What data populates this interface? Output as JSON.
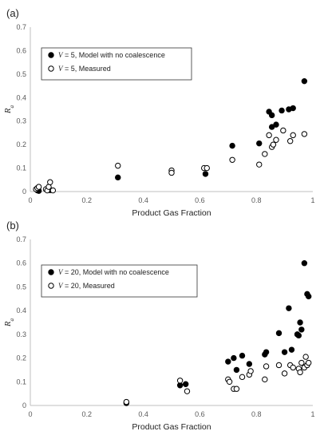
{
  "chart_data": [
    {
      "type": "scatter",
      "panel_label": "(a)",
      "xlabel": "Product Gas Fraction",
      "ylabel": "R",
      "ylabel_sub": "a",
      "xlim": [
        0,
        1
      ],
      "ylim": [
        0,
        0.7
      ],
      "xticks": [
        "0",
        "0.2",
        "0.4",
        "0.6",
        "0.8",
        "1"
      ],
      "yticks": [
        "0",
        "0.1",
        "0.2",
        "0.3",
        "0.4",
        "0.5",
        "0.6",
        "0.7"
      ],
      "legend_position": "top-left",
      "legend": [
        {
          "var": "V",
          "text": " = 5, Model with no coalescence"
        },
        {
          "var": "V",
          "text": " = 5, Measured"
        }
      ],
      "series": [
        {
          "filled": true,
          "points": [
            [
              0.025,
              0.005
            ],
            [
              0.03,
              0.003
            ],
            [
              0.06,
              0.008
            ],
            [
              0.065,
              0.012
            ],
            [
              0.07,
              0.006
            ],
            [
              0.31,
              0.06
            ],
            [
              0.62,
              0.075
            ],
            [
              0.715,
              0.195
            ],
            [
              0.81,
              0.205
            ],
            [
              0.845,
              0.34
            ],
            [
              0.855,
              0.325
            ],
            [
              0.855,
              0.275
            ],
            [
              0.87,
              0.285
            ],
            [
              0.89,
              0.345
            ],
            [
              0.915,
              0.35
            ],
            [
              0.93,
              0.355
            ],
            [
              0.97,
              0.47
            ]
          ]
        },
        {
          "filled": false,
          "points": [
            [
              0.02,
              0.01
            ],
            [
              0.025,
              0.015
            ],
            [
              0.03,
              0.02
            ],
            [
              0.055,
              0.01
            ],
            [
              0.06,
              0.005
            ],
            [
              0.065,
              0.02
            ],
            [
              0.07,
              0.04
            ],
            [
              0.08,
              0.005
            ],
            [
              0.31,
              0.11
            ],
            [
              0.5,
              0.09
            ],
            [
              0.5,
              0.08
            ],
            [
              0.615,
              0.1
            ],
            [
              0.625,
              0.1
            ],
            [
              0.715,
              0.135
            ],
            [
              0.81,
              0.115
            ],
            [
              0.83,
              0.16
            ],
            [
              0.845,
              0.24
            ],
            [
              0.855,
              0.19
            ],
            [
              0.86,
              0.2
            ],
            [
              0.87,
              0.22
            ],
            [
              0.895,
              0.26
            ],
            [
              0.92,
              0.215
            ],
            [
              0.93,
              0.24
            ],
            [
              0.97,
              0.245
            ]
          ]
        }
      ]
    },
    {
      "type": "scatter",
      "panel_label": "(b)",
      "xlabel": "Product Gas Fraction",
      "ylabel": "R",
      "ylabel_sub": "a",
      "xlim": [
        0,
        1
      ],
      "ylim": [
        0,
        0.7
      ],
      "xticks": [
        "0",
        "0.2",
        "0.4",
        "0.6",
        "0.8",
        "1"
      ],
      "yticks": [
        "0",
        "0.1",
        "0.2",
        "0.3",
        "0.4",
        "0.5",
        "0.6",
        "0.7"
      ],
      "legend_position": "top-left",
      "legend": [
        {
          "var": "V",
          "text": " = 20, Model with no coalescence"
        },
        {
          "var": "V",
          "text": " = 20, Measured"
        }
      ],
      "series": [
        {
          "filled": true,
          "points": [
            [
              0.34,
              0.01
            ],
            [
              0.53,
              0.085
            ],
            [
              0.55,
              0.09
            ],
            [
              0.7,
              0.185
            ],
            [
              0.72,
              0.2
            ],
            [
              0.73,
              0.15
            ],
            [
              0.75,
              0.21
            ],
            [
              0.775,
              0.175
            ],
            [
              0.83,
              0.215
            ],
            [
              0.835,
              0.225
            ],
            [
              0.88,
              0.305
            ],
            [
              0.9,
              0.225
            ],
            [
              0.915,
              0.41
            ],
            [
              0.925,
              0.235
            ],
            [
              0.945,
              0.3
            ],
            [
              0.95,
              0.295
            ],
            [
              0.955,
              0.35
            ],
            [
              0.96,
              0.32
            ],
            [
              0.97,
              0.6
            ],
            [
              0.98,
              0.47
            ],
            [
              0.985,
              0.46
            ]
          ]
        },
        {
          "filled": false,
          "points": [
            [
              0.34,
              0.015
            ],
            [
              0.53,
              0.105
            ],
            [
              0.555,
              0.06
            ],
            [
              0.7,
              0.11
            ],
            [
              0.705,
              0.1
            ],
            [
              0.72,
              0.07
            ],
            [
              0.73,
              0.07
            ],
            [
              0.75,
              0.12
            ],
            [
              0.775,
              0.13
            ],
            [
              0.78,
              0.145
            ],
            [
              0.83,
              0.11
            ],
            [
              0.835,
              0.165
            ],
            [
              0.88,
              0.17
            ],
            [
              0.9,
              0.135
            ],
            [
              0.92,
              0.17
            ],
            [
              0.93,
              0.16
            ],
            [
              0.95,
              0.155
            ],
            [
              0.955,
              0.14
            ],
            [
              0.96,
              0.18
            ],
            [
              0.97,
              0.16
            ],
            [
              0.975,
              0.205
            ],
            [
              0.98,
              0.17
            ],
            [
              0.985,
              0.18
            ]
          ]
        }
      ]
    }
  ]
}
